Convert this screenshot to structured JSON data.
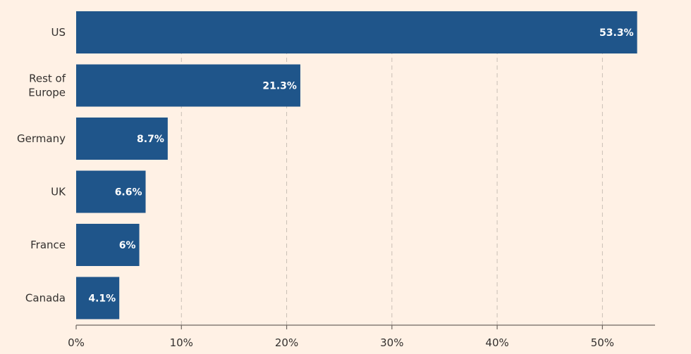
{
  "chart_data": {
    "type": "bar",
    "orientation": "horizontal",
    "categories": [
      [
        "US"
      ],
      [
        "Rest of",
        "Europe"
      ],
      [
        "Germany"
      ],
      [
        "UK"
      ],
      [
        "France"
      ],
      [
        "Canada"
      ]
    ],
    "values": [
      53.3,
      21.3,
      8.7,
      6.6,
      6.0,
      4.1
    ],
    "value_labels": [
      "53.3%",
      "21.3%",
      "8.7%",
      "6.6%",
      "6%",
      "4.1%"
    ],
    "x_ticks": [
      0,
      10,
      20,
      30,
      40,
      50
    ],
    "x_tick_labels": [
      "0%",
      "10%",
      "20%",
      "30%",
      "40%",
      "50%"
    ],
    "xlim": [
      0,
      55
    ],
    "grid": true,
    "title": "",
    "xlabel": "",
    "ylabel": ""
  },
  "colors": {
    "background": "#fff1e5",
    "bar": "#1f558a",
    "bar_label": "#ffffff"
  }
}
